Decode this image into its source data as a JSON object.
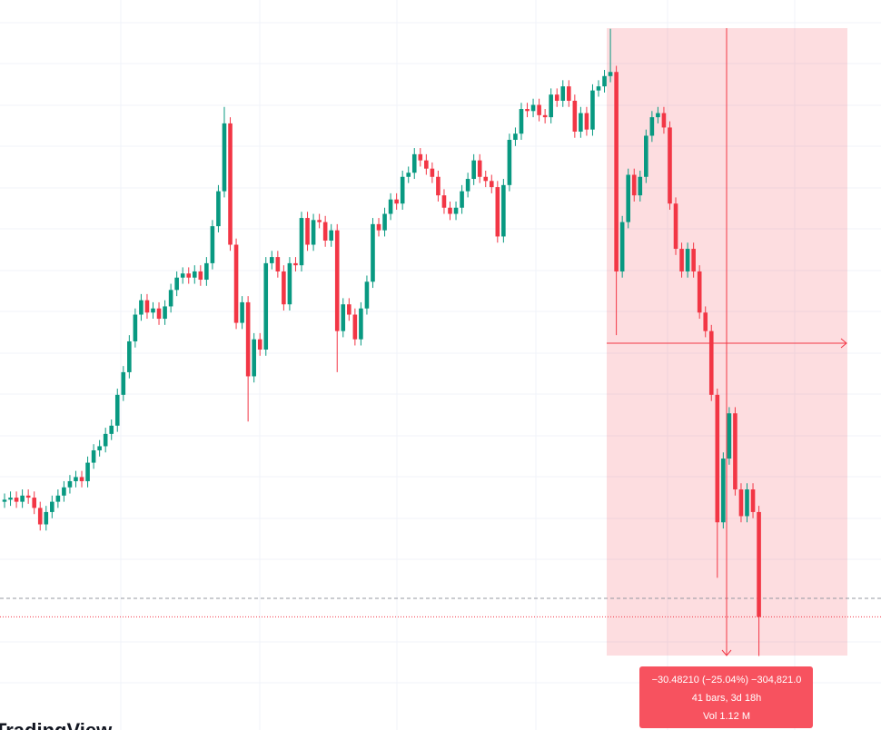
{
  "chart_data": {
    "type": "candlestick",
    "up_color": "#089981",
    "down_color": "#f23645",
    "ylim": [
      87.6,
      123.1
    ],
    "open": [
      98.7,
      98.8,
      98.9,
      98.7,
      99.0,
      98.9,
      98.4,
      97.6,
      98.2,
      98.7,
      99.0,
      99.4,
      99.7,
      99.9,
      99.7,
      100.6,
      101.2,
      101.4,
      102.0,
      102.4,
      103.9,
      105.0,
      106.5,
      107.8,
      108.5,
      107.9,
      108.1,
      107.6,
      108.2,
      109.0,
      109.6,
      109.8,
      109.6,
      109.9,
      109.5,
      110.3,
      112.1,
      113.8,
      117.1,
      111.2,
      107.4,
      108.4,
      104.8,
      106.6,
      106.1,
      110.3,
      110.6,
      109.9,
      108.3,
      110.3,
      110.2,
      112.5,
      111.2,
      112.4,
      112.3,
      111.4,
      111.9,
      107.0,
      108.3,
      107.8,
      106.6,
      108.1,
      109.4,
      112.2,
      111.9,
      112.7,
      113.4,
      113.2,
      114.5,
      114.7,
      115.6,
      115.3,
      114.9,
      114.5,
      113.6,
      113.0,
      112.7,
      113.0,
      113.8,
      114.4,
      115.3,
      114.5,
      114.3,
      114.0,
      111.6,
      114.1,
      116.3,
      116.6,
      117.8,
      117.7,
      118.0,
      117.5,
      117.4,
      118.5,
      118.2,
      118.9,
      118.2,
      116.7,
      117.6,
      116.8,
      118.7,
      118.9,
      119.4,
      119.6,
      109.9,
      112.3,
      114.6,
      113.6,
      114.5,
      116.5,
      117.4,
      117.6,
      116.9,
      113.2,
      111.0,
      109.9,
      111.0,
      109.9,
      107.9,
      107.0,
      103.9,
      97.7,
      100.8,
      103.0,
      99.3,
      98.0,
      99.3,
      98.2
    ],
    "high": [
      99.1,
      99.2,
      99.2,
      99.3,
      99.3,
      99.2,
      98.7,
      98.5,
      99.0,
      99.3,
      99.7,
      100.0,
      100.2,
      100.2,
      100.9,
      101.5,
      101.7,
      102.3,
      102.7,
      104.2,
      105.3,
      106.8,
      108.1,
      108.8,
      108.8,
      108.4,
      108.4,
      108.5,
      109.3,
      109.9,
      110.1,
      110.1,
      110.2,
      110.2,
      110.6,
      112.4,
      114.1,
      117.9,
      117.4,
      111.5,
      108.7,
      108.7,
      106.9,
      106.9,
      110.6,
      110.9,
      110.9,
      110.2,
      110.6,
      110.6,
      112.8,
      112.8,
      112.7,
      112.7,
      112.6,
      112.2,
      112.2,
      108.6,
      108.6,
      108.1,
      108.4,
      109.7,
      112.5,
      112.5,
      113.0,
      113.7,
      113.7,
      114.8,
      115.0,
      115.9,
      115.9,
      115.6,
      115.2,
      114.8,
      113.9,
      113.3,
      113.3,
      114.1,
      114.7,
      115.6,
      115.6,
      114.8,
      114.6,
      114.3,
      114.4,
      116.6,
      116.9,
      118.1,
      118.1,
      118.3,
      118.3,
      117.8,
      118.8,
      118.8,
      119.2,
      119.2,
      118.5,
      117.9,
      117.9,
      119.0,
      119.2,
      119.7,
      121.7,
      119.9,
      112.6,
      114.9,
      114.9,
      114.8,
      116.8,
      117.7,
      117.9,
      117.9,
      117.2,
      113.5,
      111.3,
      111.3,
      111.3,
      110.2,
      108.2,
      107.3,
      104.2,
      101.1,
      103.3,
      103.3,
      99.6,
      99.6,
      99.6,
      98.5
    ],
    "low": [
      98.4,
      98.5,
      98.4,
      98.4,
      98.6,
      98.1,
      97.3,
      97.3,
      97.9,
      98.4,
      98.7,
      99.1,
      99.4,
      99.4,
      99.4,
      100.3,
      100.9,
      101.1,
      101.7,
      102.1,
      103.6,
      104.7,
      106.2,
      107.5,
      107.6,
      107.6,
      107.3,
      107.3,
      107.9,
      108.7,
      109.3,
      109.3,
      109.3,
      109.2,
      109.2,
      110.0,
      111.8,
      113.5,
      110.9,
      107.1,
      107.1,
      102.6,
      104.5,
      105.8,
      105.8,
      110.0,
      109.6,
      108.0,
      108.0,
      109.9,
      109.9,
      110.9,
      110.9,
      112.0,
      111.1,
      111.1,
      105.0,
      106.7,
      107.5,
      106.3,
      106.3,
      107.8,
      109.1,
      111.6,
      111.6,
      112.4,
      112.9,
      112.9,
      114.2,
      114.4,
      115.0,
      114.6,
      114.2,
      113.3,
      112.7,
      112.4,
      112.4,
      112.7,
      113.5,
      114.1,
      114.2,
      114.0,
      113.7,
      111.3,
      111.3,
      113.8,
      116.0,
      116.3,
      117.4,
      117.4,
      117.2,
      117.1,
      117.1,
      117.9,
      117.9,
      117.9,
      116.4,
      116.4,
      116.5,
      116.5,
      118.4,
      118.6,
      119.1,
      106.8,
      109.6,
      112.0,
      113.3,
      113.3,
      114.2,
      116.2,
      117.1,
      116.6,
      112.9,
      110.7,
      109.6,
      109.6,
      109.6,
      107.6,
      106.7,
      103.6,
      95.0,
      97.4,
      100.5,
      99.0,
      97.7,
      97.7,
      97.9,
      91.2
    ],
    "close": [
      98.8,
      98.9,
      98.7,
      99.0,
      98.9,
      98.4,
      97.6,
      98.2,
      98.7,
      99.0,
      99.4,
      99.7,
      99.9,
      99.7,
      100.6,
      101.2,
      101.4,
      102.0,
      102.4,
      103.9,
      105.0,
      106.5,
      107.8,
      108.5,
      107.9,
      108.1,
      107.6,
      108.2,
      109.0,
      109.6,
      109.8,
      109.6,
      109.9,
      109.5,
      110.3,
      112.1,
      113.8,
      117.1,
      111.2,
      107.4,
      108.4,
      104.8,
      106.6,
      106.1,
      110.3,
      110.6,
      109.9,
      108.3,
      110.3,
      110.2,
      112.5,
      111.2,
      112.4,
      112.3,
      111.4,
      111.9,
      107.0,
      108.3,
      107.8,
      106.6,
      108.1,
      109.4,
      112.2,
      111.9,
      112.7,
      113.4,
      113.2,
      114.5,
      114.7,
      115.6,
      115.3,
      114.9,
      114.5,
      113.6,
      113.0,
      112.7,
      113.0,
      113.8,
      114.4,
      115.3,
      114.5,
      114.3,
      114.0,
      111.6,
      114.1,
      116.3,
      116.6,
      117.8,
      117.7,
      118.0,
      117.5,
      117.4,
      118.5,
      118.2,
      118.9,
      118.2,
      116.7,
      117.6,
      116.8,
      118.7,
      118.9,
      119.4,
      119.6,
      109.9,
      112.3,
      114.6,
      113.6,
      114.5,
      116.5,
      117.4,
      117.6,
      116.9,
      113.2,
      111.0,
      109.9,
      111.0,
      109.9,
      107.9,
      107.0,
      103.9,
      97.7,
      100.8,
      103.0,
      99.3,
      98.0,
      99.3,
      98.2,
      93.1
    ],
    "measure": {
      "change": "−30.48210 (−25.04%) −304,821.0",
      "bars": "41 bars, 3d 18h",
      "volume": "Vol 1.12 M"
    },
    "watermark": "TradingView"
  }
}
